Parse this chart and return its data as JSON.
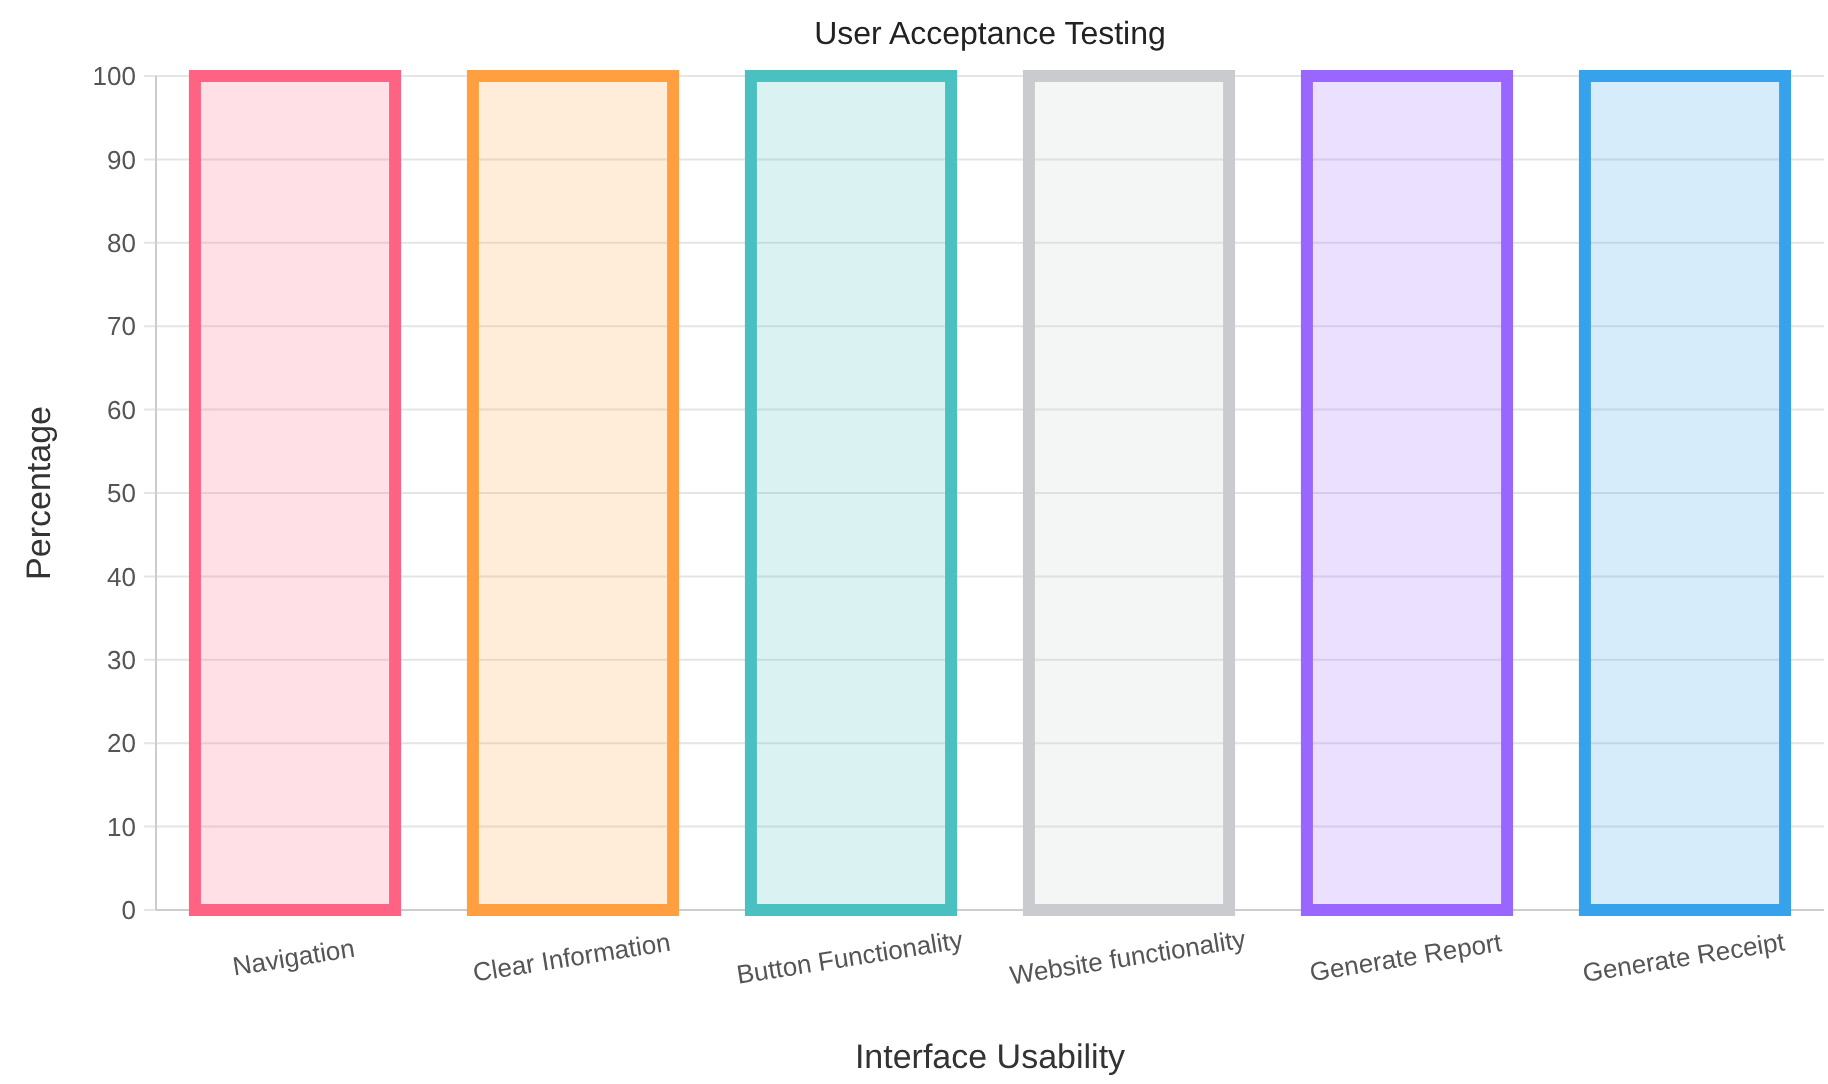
{
  "chart_data": {
    "type": "bar",
    "title": "User Acceptance Testing",
    "xlabel": "Interface Usability",
    "ylabel": "Percentage",
    "categories": [
      "Navigation",
      "Clear Information",
      "Button Functionality",
      "Website functionality",
      "Generate Report",
      "Generate Receipt"
    ],
    "values": [
      100,
      100,
      100,
      100,
      100,
      100
    ],
    "colors": [
      "#ff6384",
      "#ff9f40",
      "#4bc0c0",
      "#c9cbcf",
      "#9966ff",
      "#36a2eb"
    ],
    "ylim": [
      0,
      100
    ],
    "yticks": [
      0,
      10,
      20,
      30,
      40,
      50,
      60,
      70,
      80,
      90,
      100
    ],
    "grid": "y"
  }
}
